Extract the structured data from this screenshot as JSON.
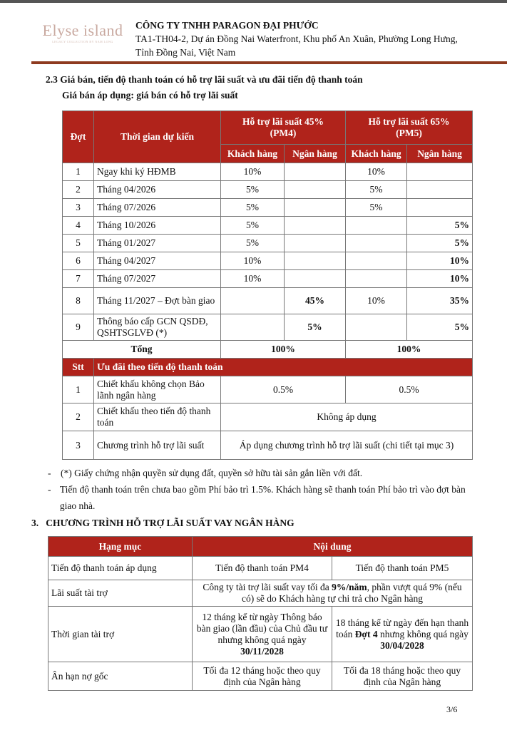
{
  "header": {
    "logo_text": "Elyse island",
    "logo_sub": "LEGACY COLLECTION BY NAM LONG",
    "company": "CÔNG TY TNHH PARAGON ĐẠI PHƯỚC",
    "address": "TA1-TH04-2, Dự án Đồng Nai Waterfront, Khu phố An Xuân, Phường Long Hưng, Tỉnh Đồng Nai, Việt Nam"
  },
  "section23": {
    "title": "2.3 Giá bán, tiến độ thanh toán có hỗ trợ lãi suất và ưu đãi tiến độ thanh toán",
    "subtitle": "Giá bán áp dụng: giá bán có hỗ trợ lãi suất",
    "table": {
      "col_dot": "Đợt",
      "col_time": "Thời gian dự kiến",
      "pm4": "Hỗ trợ lãi suất 45% (PM4)",
      "pm5": "Hỗ trợ lãi suất 65% (PM5)",
      "kh": "Khách hàng",
      "nh": "Ngân hàng",
      "rows": [
        {
          "dot": "1",
          "time": "Ngay khi ký HĐMB",
          "kh4": "10%",
          "nh4": "",
          "kh5": "10%",
          "nh5": ""
        },
        {
          "dot": "2",
          "time": "Tháng 04/2026",
          "kh4": "5%",
          "nh4": "",
          "kh5": "5%",
          "nh5": ""
        },
        {
          "dot": "3",
          "time": "Tháng 07/2026",
          "kh4": "5%",
          "nh4": "",
          "kh5": "5%",
          "nh5": ""
        },
        {
          "dot": "4",
          "time": "Tháng 10/2026",
          "kh4": "5%",
          "nh4": "",
          "kh5": "",
          "nh5": "5%"
        },
        {
          "dot": "5",
          "time": "Tháng 01/2027",
          "kh4": "5%",
          "nh4": "",
          "kh5": "",
          "nh5": "5%"
        },
        {
          "dot": "6",
          "time": "Tháng 04/2027",
          "kh4": "10%",
          "nh4": "",
          "kh5": "",
          "nh5": "10%"
        },
        {
          "dot": "7",
          "time": "Tháng 07/2027",
          "kh4": "10%",
          "nh4": "",
          "kh5": "",
          "nh5": "10%"
        },
        {
          "dot": "8",
          "time": "Tháng 11/2027 – Đợt bàn giao",
          "kh4": "",
          "nh4": "45%",
          "kh5": "10%",
          "nh5": "35%"
        },
        {
          "dot": "9",
          "time": "Thông báo cấp GCN QSDĐ, QSHTSGLVĐ (*)",
          "kh4": "",
          "nh4": "5%",
          "kh5": "",
          "nh5": "5%"
        }
      ],
      "total_label": "Tổng",
      "total_pm4": "100%",
      "total_pm5": "100%",
      "stt": "Stt",
      "incentive_header": "Ưu đãi theo tiến độ thanh toán",
      "incentives": [
        {
          "stt": "1",
          "name": "Chiết khấu không chọn Bảo lãnh ngân hàng",
          "pm4": "0.5%",
          "pm5": "0.5%"
        },
        {
          "stt": "2",
          "name": "Chiết khấu theo tiến độ thanh toán",
          "value": "Không áp dụng"
        },
        {
          "stt": "3",
          "name": "Chương trình hỗ trợ lãi suất",
          "value": "Áp dụng chương trình hỗ trợ lãi suất (chi tiết tại mục 3)"
        }
      ]
    },
    "notes": [
      "(*) Giấy chứng nhận quyền sử dụng đất, quyền sở hữu tài sản gắn liền với đất.",
      "Tiến độ thanh toán trên chưa bao gồm Phí bảo trì 1.5%. Khách hàng sẽ thanh toán Phí bảo trì vào đợt bàn giao nhà."
    ]
  },
  "section3": {
    "number": "3.",
    "title": "CHƯƠNG TRÌNH HỖ TRỢ LÃI SUẤT VAY NGÂN HÀNG",
    "col_item": "Hạng mục",
    "col_content": "Nội dung",
    "r1": {
      "label": "Tiến độ thanh toán áp dụng",
      "pm4": "Tiến độ thanh toán PM4",
      "pm5": "Tiến độ thanh toán PM5"
    },
    "r2": {
      "label": "Lãi suất tài trợ",
      "pre": "Công ty tài trợ lãi suất vay tối đa ",
      "bold": "9%/năm",
      "post": ", phần vượt quá 9% (nếu có) sẽ do Khách hàng tự chi trả cho Ngân hàng"
    },
    "r3": {
      "label": "Thời gian tài trợ",
      "pm4_pre": "12 tháng kể từ ngày Thông báo bàn giao (lần đầu) của Chủ đầu tư nhưng không quá ngày ",
      "pm4_bold": "30/11/2028",
      "pm5_pre": "18 tháng kể từ ngày đến hạn thanh toán ",
      "pm5_bold1": "Đợt 4",
      "pm5_mid": " nhưng không quá ngày ",
      "pm5_bold2": "30/04/2028"
    },
    "r4": {
      "label": "Ân hạn nợ gốc",
      "pm4": "Tối đa 12 tháng hoặc theo quy định của Ngân hàng",
      "pm5": "Tối đa 18 tháng hoặc theo quy định của Ngân hàng"
    }
  },
  "page_number": "3/6",
  "colors": {
    "table_header": "#b0231b",
    "band": "#8e3a1f"
  }
}
